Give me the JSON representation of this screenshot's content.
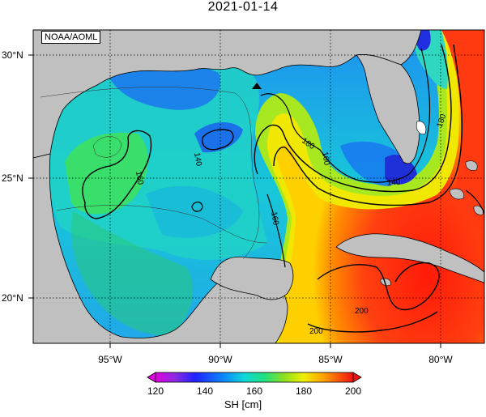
{
  "title": "2021-01-14",
  "credit": "NOAA/AOML",
  "lat_ticks": [
    "30°N",
    "25°N",
    "20°N"
  ],
  "lon_ticks": [
    "95°W",
    "90°W",
    "85°W",
    "80°W"
  ],
  "contour_labels": [
    "140",
    "160",
    "180",
    "200"
  ],
  "colorbar": {
    "label": "SH [cm]",
    "ticks": [
      "120",
      "140",
      "160",
      "180",
      "200"
    ],
    "colors": [
      "#e000e0",
      "#8a2be2",
      "#2020ff",
      "#0a8cff",
      "#10d8d8",
      "#20e080",
      "#8de020",
      "#f0f000",
      "#ffa000",
      "#ff5000",
      "#f01010"
    ]
  },
  "colors": {
    "land": "#c0c0c0",
    "water_deep": "#1848e6",
    "water_mid": "#18c8d8",
    "water_warm": "#ff2a10"
  }
}
